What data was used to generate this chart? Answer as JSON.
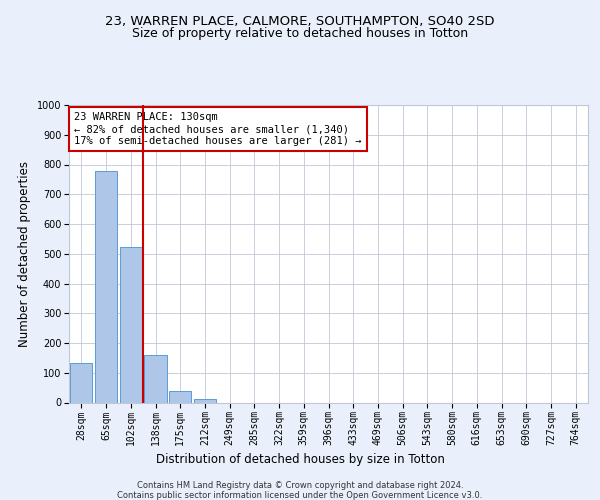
{
  "title1": "23, WARREN PLACE, CALMORE, SOUTHAMPTON, SO40 2SD",
  "title2": "Size of property relative to detached houses in Totton",
  "xlabel": "Distribution of detached houses by size in Totton",
  "ylabel": "Number of detached properties",
  "bar_labels": [
    "28sqm",
    "65sqm",
    "102sqm",
    "138sqm",
    "175sqm",
    "212sqm",
    "249sqm",
    "285sqm",
    "322sqm",
    "359sqm",
    "396sqm",
    "433sqm",
    "469sqm",
    "506sqm",
    "543sqm",
    "580sqm",
    "616sqm",
    "653sqm",
    "690sqm",
    "727sqm",
    "764sqm"
  ],
  "bar_values": [
    133,
    778,
    524,
    158,
    38,
    13,
    0,
    0,
    0,
    0,
    0,
    0,
    0,
    0,
    0,
    0,
    0,
    0,
    0,
    0,
    0
  ],
  "bar_color": "#aec6e8",
  "bar_edge_color": "#5b9bd5",
  "vline_x": 2.5,
  "vline_color": "#cc0000",
  "annotation_text": "23 WARREN PLACE: 130sqm\n← 82% of detached houses are smaller (1,340)\n17% of semi-detached houses are larger (281) →",
  "annotation_box_color": "#ffffff",
  "annotation_box_edge": "#cc0000",
  "ylim": [
    0,
    1000
  ],
  "yticks": [
    0,
    100,
    200,
    300,
    400,
    500,
    600,
    700,
    800,
    900,
    1000
  ],
  "footer1": "Contains HM Land Registry data © Crown copyright and database right 2024.",
  "footer2": "Contains public sector information licensed under the Open Government Licence v3.0.",
  "bg_color": "#eaf0fb",
  "plot_bg": "#ffffff",
  "grid_color": "#c0c8d8",
  "title1_fontsize": 9.5,
  "title2_fontsize": 9,
  "tick_fontsize": 7,
  "ylabel_fontsize": 8.5,
  "xlabel_fontsize": 8.5,
  "footer_fontsize": 6
}
